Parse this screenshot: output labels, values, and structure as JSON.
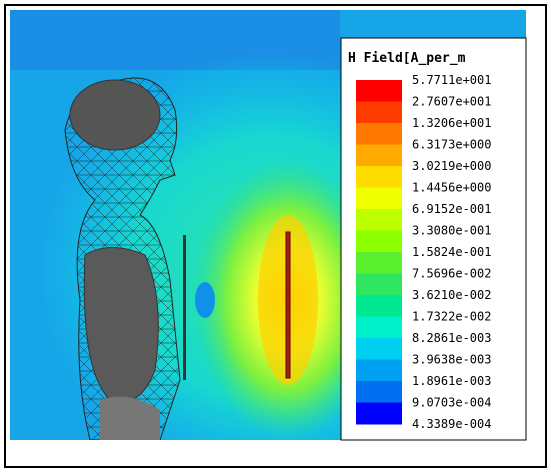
{
  "legend": {
    "title": "H Field[A_per_m",
    "labels": [
      "5.7711e+001",
      "2.7607e+001",
      "1.3206e+001",
      "6.3173e+000",
      "3.0219e+000",
      "1.4456e+000",
      "6.9152e-001",
      "3.3080e-001",
      "1.5824e-001",
      "7.5696e-002",
      "3.6210e-002",
      "1.7322e-002",
      "8.2861e-003",
      "3.9638e-003",
      "1.8961e-003",
      "9.0703e-004",
      "4.3389e-004"
    ],
    "colors": [
      "#ff0000",
      "#ff3c00",
      "#ff7800",
      "#ffaa00",
      "#ffdc00",
      "#eeff00",
      "#bcff00",
      "#8cff00",
      "#5af030",
      "#2ee660",
      "#00e890",
      "#00f0cc",
      "#00d0f0",
      "#00a0f0",
      "#0070f0",
      "#0000ff"
    ]
  }
}
